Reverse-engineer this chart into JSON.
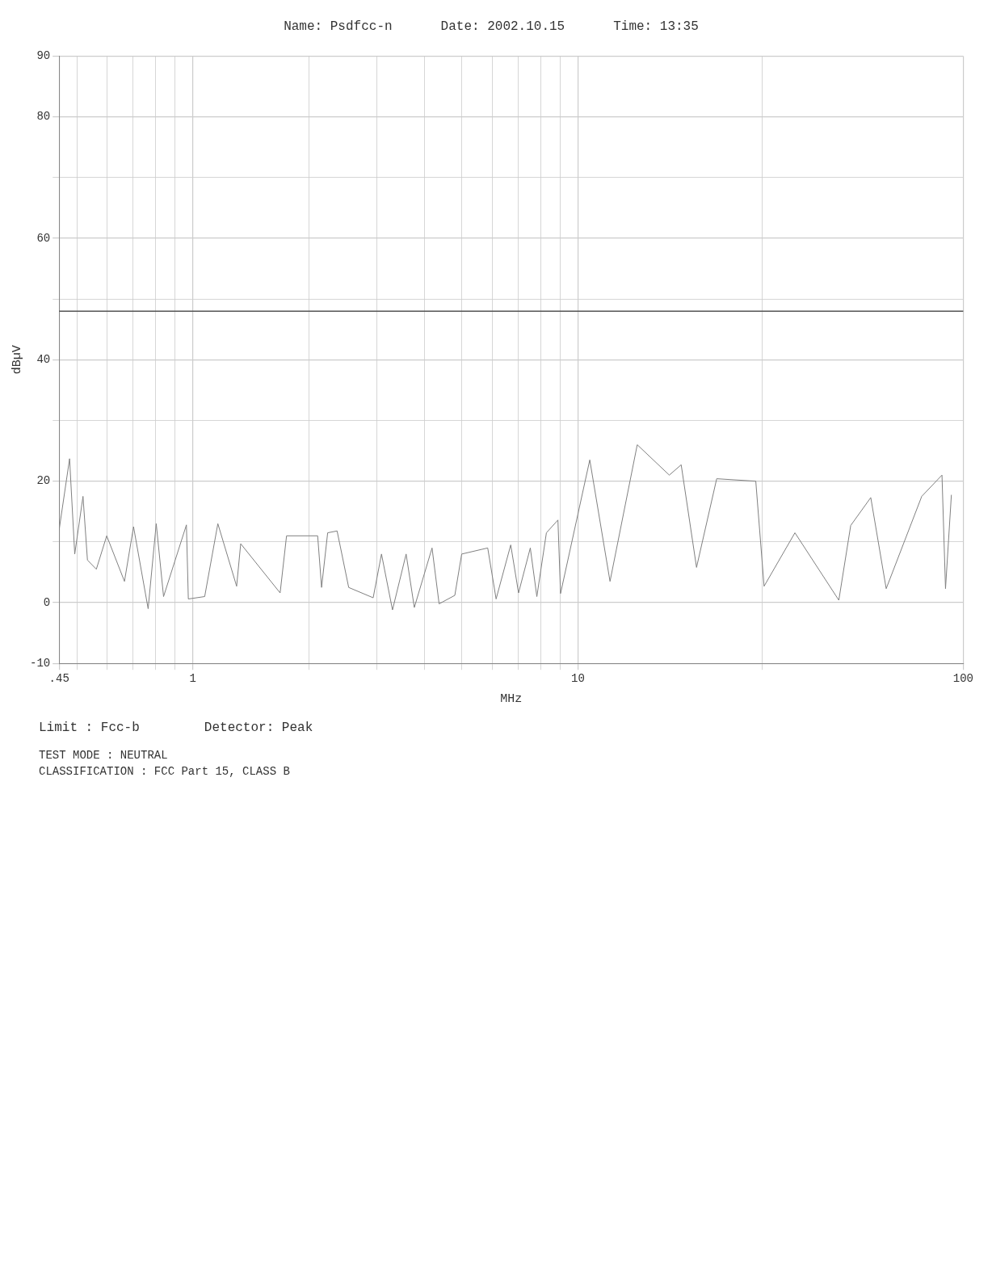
{
  "chart_data": {
    "type": "line",
    "title": "Name: Psdfcc-n",
    "xlabel": "MHz",
    "ylabel": "dBµV",
    "annotations": [
      "Date: 2002.10.15",
      "Time: 13:35",
      "Limit : Fcc-b",
      "Detector: Peak",
      "TEST MODE : NEUTRAL",
      "CLASSIFICATION : FCC Part 15, CLASS B"
    ],
    "log": "x",
    "grid": true,
    "legend": false,
    "marker": "none",
    "line_style": "solid",
    "xlim": [
      0.45,
      100
    ],
    "xticks": [
      {
        "value": 0.45,
        "label": ".45"
      },
      {
        "value": 0.5,
        "label": null
      },
      {
        "value": 0.6,
        "label": null
      },
      {
        "value": 0.7,
        "label": null
      },
      {
        "value": 0.8,
        "label": null
      },
      {
        "value": 0.9,
        "label": null
      },
      1,
      {
        "value": 2,
        "label": null
      },
      {
        "value": 3,
        "label": null
      },
      {
        "value": 4,
        "label": null
      },
      {
        "value": 5,
        "label": null
      },
      {
        "value": 6,
        "label": null
      },
      {
        "value": 7,
        "label": null
      },
      {
        "value": 8,
        "label": null
      },
      {
        "value": 9,
        "label": null
      },
      10,
      {
        "value": 30,
        "label": null
      },
      100
    ],
    "ylim": [
      -10,
      90
    ],
    "yticks": [
      -10,
      0,
      {
        "value": 10,
        "label": null
      },
      20,
      {
        "value": 30,
        "label": null
      },
      40,
      {
        "value": 50,
        "label": null
      },
      60,
      {
        "value": 70,
        "label": null
      },
      80,
      90
    ],
    "ref_lines": [
      {
        "axis": "y",
        "value": 48,
        "label": null,
        "color": "#555555"
      }
    ],
    "series": [
      {
        "color": "#808080",
        "x": [
          0.45,
          0.479,
          0.494,
          0.519,
          0.533,
          0.562,
          0.598,
          0.665,
          0.702,
          0.766,
          0.804,
          0.84,
          0.963,
          0.974,
          1.074,
          1.162,
          1.3,
          1.332,
          1.686,
          1.752,
          2.11,
          2.16,
          2.24,
          2.37,
          2.54,
          2.94,
          3.09,
          3.3,
          3.58,
          3.76,
          4.18,
          4.36,
          4.79,
          4.99,
          5.83,
          6.13,
          6.69,
          7.01,
          7.52,
          7.82,
          8.28,
          8.87,
          9.01,
          10.73,
          12.11,
          14.25,
          17.26,
          18.53,
          20.31,
          22.91,
          28.94,
          30.41,
          36.57,
          47.54,
          51.04,
          57.54,
          63.1,
          78.03,
          88.07,
          89.94,
          93.15
        ],
        "values": [
          12,
          23.7,
          8,
          17.5,
          7,
          5.5,
          11,
          3.5,
          12.5,
          -1,
          13,
          1,
          12.8,
          0.6,
          1,
          13,
          2.7,
          9.7,
          1.6,
          11,
          11,
          2.5,
          11.5,
          11.8,
          2.5,
          0.8,
          8,
          -1.2,
          8,
          -0.8,
          9,
          -0.2,
          1.2,
          8,
          9,
          0.6,
          9.5,
          1.6,
          9,
          1,
          11.5,
          13.6,
          1.5,
          23.5,
          3.5,
          26,
          21,
          22.7,
          5.8,
          20.4,
          20,
          2.7,
          11.5,
          0.4,
          12.7,
          17.3,
          2.3,
          17.5,
          21,
          2.3,
          17.7
        ]
      }
    ]
  }
}
